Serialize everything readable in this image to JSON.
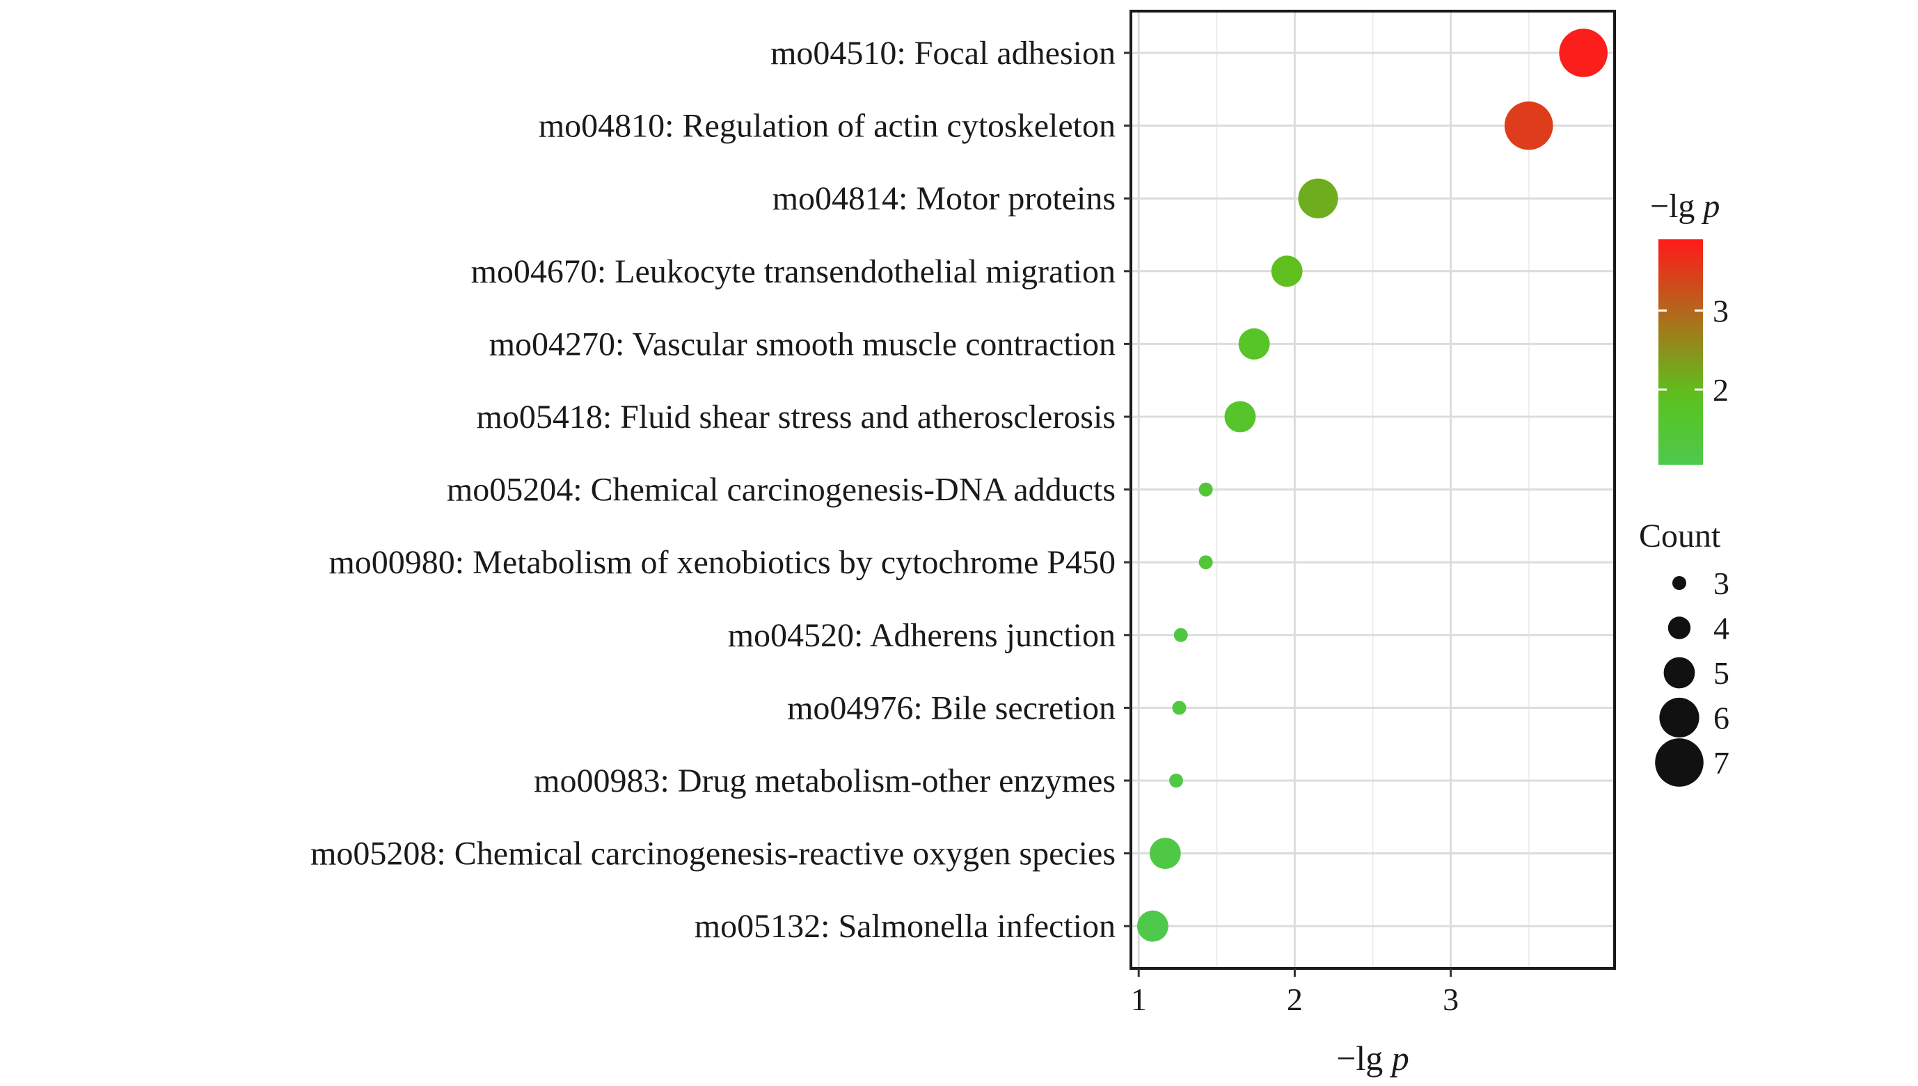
{
  "chart_data": {
    "type": "scatter",
    "xlabel": "−lg p",
    "xlabel_prefix": "−lg ",
    "xlabel_var": "p",
    "xlim": [
      0.95,
      4.05
    ],
    "xticks": [
      1,
      2,
      3
    ],
    "xtick_labels": [
      "1",
      "2",
      "3"
    ],
    "grid": true,
    "categories": [
      "mo04510: Focal adhesion",
      "mo04810: Regulation of actin cytoskeleton",
      "mo04814: Motor proteins",
      "mo04670: Leukocyte transendothelial migration",
      "mo04270: Vascular smooth muscle contraction",
      "mo05418: Fluid shear stress and atherosclerosis",
      "mo05204: Chemical carcinogenesis-DNA adducts",
      "mo00980: Metabolism of xenobiotics by cytochrome P450",
      "mo04520: Adherens junction",
      "mo04976: Bile secretion",
      "mo00983: Drug metabolism-other enzymes",
      "mo05208: Chemical carcinogenesis-reactive oxygen species",
      "mo05132: Salmonella infection"
    ],
    "x": [
      3.85,
      3.5,
      2.15,
      1.95,
      1.74,
      1.65,
      1.43,
      1.43,
      1.27,
      1.26,
      1.24,
      1.17,
      1.09
    ],
    "count": [
      7,
      7,
      6,
      5,
      5,
      5,
      3,
      3,
      3,
      3,
      3,
      5,
      5
    ],
    "color_legend": {
      "title_prefix": "−lg ",
      "title_var": "p",
      "range": [
        1.05,
        3.9
      ],
      "ticks": [
        2,
        3
      ],
      "tick_labels": [
        "2",
        "3"
      ],
      "colors": {
        "low": "#4dc94d",
        "mid": "#5ac31e",
        "high": "#ff1a1a"
      }
    },
    "size_legend": {
      "title": "Count",
      "values": [
        3,
        4,
        5,
        6,
        7
      ],
      "labels": [
        "3",
        "4",
        "5",
        "6",
        "7"
      ]
    },
    "legend_position": "right"
  }
}
